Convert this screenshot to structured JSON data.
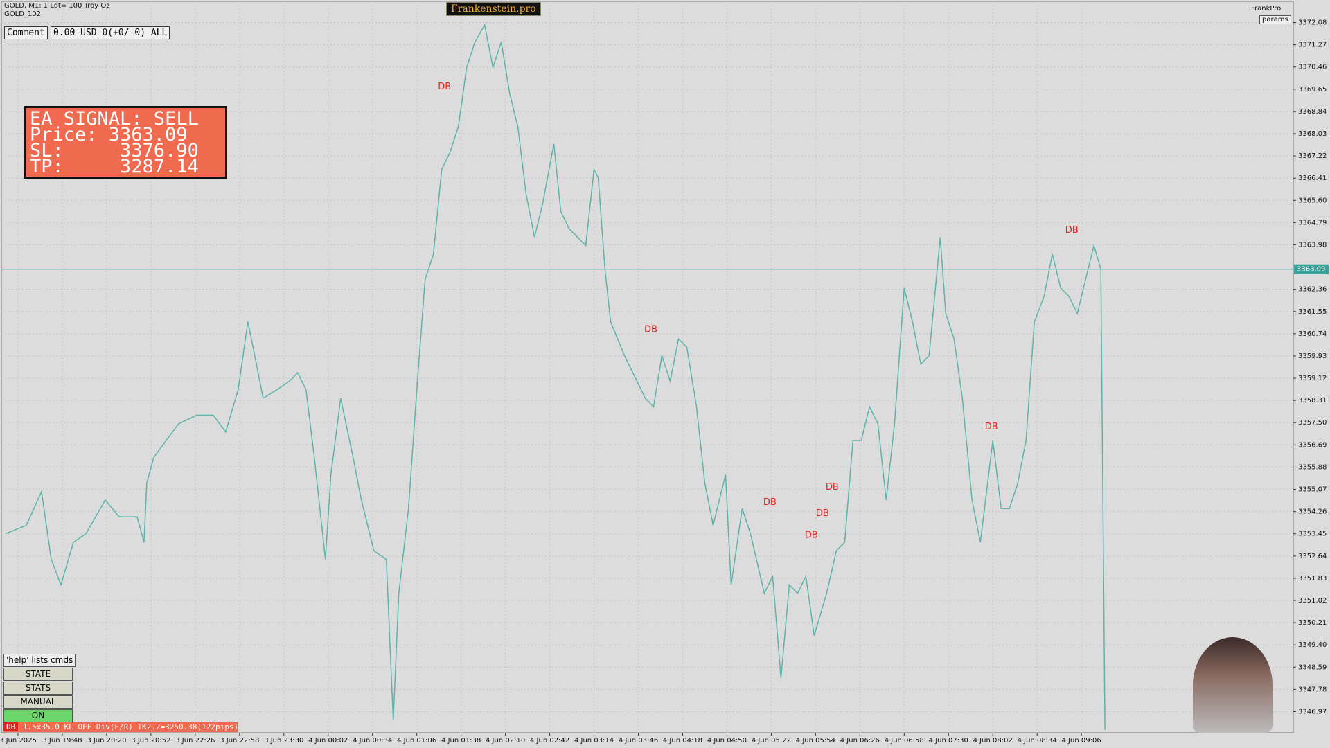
{
  "header": {
    "symbol": "GOLD, M1:  1 Lot= 100 Troy Oz",
    "template": "GOLD_102",
    "brand": "Frankenstein.pro",
    "user": "FrankPro",
    "params": "params"
  },
  "comment": {
    "label": "Comment",
    "value": "0.00 USD 0(+0/-0) ALL"
  },
  "signal_box": {
    "lines": [
      "EA SIGNAL: SELL",
      "Price: 3363.09",
      "SL:     3376.90",
      "TP:     3287.14"
    ]
  },
  "buttons": [
    "'help' lists cmds",
    "STATE",
    "STATS",
    "MANUAL",
    "ON"
  ],
  "status": {
    "tag": "DB",
    "text": "1.5x35.0 KL_OFF Div(F/R) TK2.2=3250.38(122pips)"
  },
  "chart_data": {
    "type": "line",
    "color": "#5db3a9",
    "grid": true,
    "bid_line": 3363.09,
    "bid_color": "#3aa39a",
    "xlim": [
      -12,
      921
    ],
    "ylim": [
      3346.2,
      3372.85
    ],
    "x": [
      -9,
      6,
      17,
      24,
      31,
      40,
      49,
      63,
      73,
      86,
      91,
      93,
      98,
      107,
      116,
      129,
      141,
      150,
      159,
      166,
      171,
      177,
      187,
      196,
      202,
      208,
      214,
      222,
      226,
      233,
      242,
      248,
      257,
      266,
      271,
      275,
      282,
      288,
      294,
      300,
      306,
      312,
      318,
      324,
      330,
      337,
      343,
      349,
      355,
      361,
      367,
      373,
      379,
      387,
      392,
      398,
      404,
      410,
      416,
      419,
      424,
      428,
      438,
      444,
      453,
      459,
      465,
      471,
      477,
      483,
      490,
      496,
      502,
      511,
      515,
      523,
      529,
      539,
      545,
      551,
      557,
      563,
      569,
      575,
      584,
      591,
      597,
      603,
      609,
      615,
      621,
      627,
      633,
      640,
      646,
      652,
      658,
      666,
      670,
      676,
      682,
      689,
      695,
      698,
      704,
      710,
      716,
      722,
      728,
      734,
      741,
      747,
      753,
      759,
      765,
      771,
      777,
      782,
      785
    ],
    "series": [
      {
        "values": [
          3353.45,
          3353.76,
          3354.99,
          3352.52,
          3351.59,
          3353.14,
          3353.45,
          3354.68,
          3354.07,
          3354.07,
          3353.14,
          3355.3,
          3356.23,
          3356.85,
          3357.46,
          3357.77,
          3357.77,
          3357.16,
          3358.7,
          3361.17,
          3359.94,
          3358.39,
          3358.7,
          3359.01,
          3359.32,
          3358.7,
          3356.23,
          3352.52,
          3355.61,
          3358.39,
          3356.23,
          3354.68,
          3352.83,
          3352.52,
          3346.65,
          3351.28,
          3354.37,
          3358.7,
          3362.72,
          3363.64,
          3366.73,
          3367.35,
          3368.28,
          3370.44,
          3371.37,
          3371.99,
          3370.44,
          3371.37,
          3369.52,
          3368.28,
          3365.81,
          3364.26,
          3365.5,
          3367.66,
          3365.19,
          3364.57,
          3364.26,
          3363.95,
          3366.73,
          3366.43,
          3363.03,
          3361.17,
          3359.94,
          3359.32,
          3358.39,
          3358.08,
          3359.94,
          3359.01,
          3360.55,
          3360.25,
          3358.08,
          3355.3,
          3353.76,
          3355.61,
          3351.59,
          3354.37,
          3353.45,
          3351.28,
          3351.9,
          3348.19,
          3351.59,
          3351.28,
          3351.9,
          3349.74,
          3351.28,
          3352.83,
          3353.14,
          3356.85,
          3356.85,
          3358.08,
          3357.46,
          3354.68,
          3357.46,
          3362.41,
          3361.17,
          3359.63,
          3359.94,
          3364.26,
          3361.48,
          3360.55,
          3358.39,
          3354.68,
          3353.14,
          3354.37,
          3356.85,
          3354.37,
          3354.37,
          3355.3,
          3356.85,
          3361.17,
          3362.1,
          3363.64,
          3362.41,
          3362.1,
          3361.48,
          3362.72,
          3363.95,
          3363.09,
          3346.3
        ]
      }
    ],
    "annotations": [
      {
        "text": "DB",
        "x": 308,
        "y": 3369.73
      },
      {
        "text": "DB",
        "x": 457,
        "y": 3360.89
      },
      {
        "text": "DB",
        "x": 543,
        "y": 3354.59
      },
      {
        "text": "DB",
        "x": 573,
        "y": 3353.39
      },
      {
        "text": "DB",
        "x": 581,
        "y": 3354.19
      },
      {
        "text": "DB",
        "x": 588,
        "y": 3355.15
      },
      {
        "text": "DB",
        "x": 703,
        "y": 3357.34
      },
      {
        "text": "DB",
        "x": 761,
        "y": 3364.51
      }
    ],
    "annotation_color": "#e8201c",
    "yticks": [
      3372.08,
      3371.27,
      3370.46,
      3369.65,
      3368.84,
      3368.03,
      3367.22,
      3366.41,
      {
        "value": 3365.6,
        "label": "3365.60"
      },
      3364.79,
      3363.98,
      3362.36,
      3361.55,
      3360.74,
      3359.93,
      3359.12,
      3358.31,
      {
        "value": 3357.5,
        "label": "3357.50"
      },
      3356.69,
      3355.88,
      3355.07,
      3354.26,
      3353.45,
      3352.64,
      3351.83,
      3351.02,
      3350.21,
      {
        "value": 3349.4,
        "label": "3349.40"
      },
      3348.59,
      3347.78,
      3346.97
    ],
    "xticks": [
      {
        "value": 0,
        "label": "3 Jun 2025"
      },
      {
        "value": 32,
        "label": "3 Jun 19:48"
      },
      {
        "value": 64,
        "label": "3 Jun 20:20"
      },
      {
        "value": 96,
        "label": "3 Jun 20:52"
      },
      {
        "value": 128,
        "label": "3 Jun 22:26"
      },
      {
        "value": 160,
        "label": "3 Jun 22:58"
      },
      {
        "value": 192,
        "label": "3 Jun 23:30"
      },
      {
        "value": 224,
        "label": "4 Jun 00:02"
      },
      {
        "value": 256,
        "label": "4 Jun 00:34"
      },
      {
        "value": 288,
        "label": "4 Jun 01:06"
      },
      {
        "value": 320,
        "label": "4 Jun 01:38"
      },
      {
        "value": 352,
        "label": "4 Jun 02:10"
      },
      {
        "value": 384,
        "label": "4 Jun 02:42"
      },
      {
        "value": 416,
        "label": "4 Jun 03:14"
      },
      {
        "value": 448,
        "label": "4 Jun 03:46"
      },
      {
        "value": 480,
        "label": "4 Jun 04:18"
      },
      {
        "value": 512,
        "label": "4 Jun 04:50"
      },
      {
        "value": 544,
        "label": "4 Jun 05:22"
      },
      {
        "value": 576,
        "label": "4 Jun 05:54"
      },
      {
        "value": 608,
        "label": "4 Jun 06:26"
      },
      {
        "value": 640,
        "label": "4 Jun 06:58"
      },
      {
        "value": 672,
        "label": "4 Jun 07:30"
      },
      {
        "value": 704,
        "label": "4 Jun 08:02"
      },
      {
        "value": 736,
        "label": "4 Jun 08:34"
      },
      {
        "value": 768,
        "label": "4 Jun 09:06"
      }
    ]
  }
}
